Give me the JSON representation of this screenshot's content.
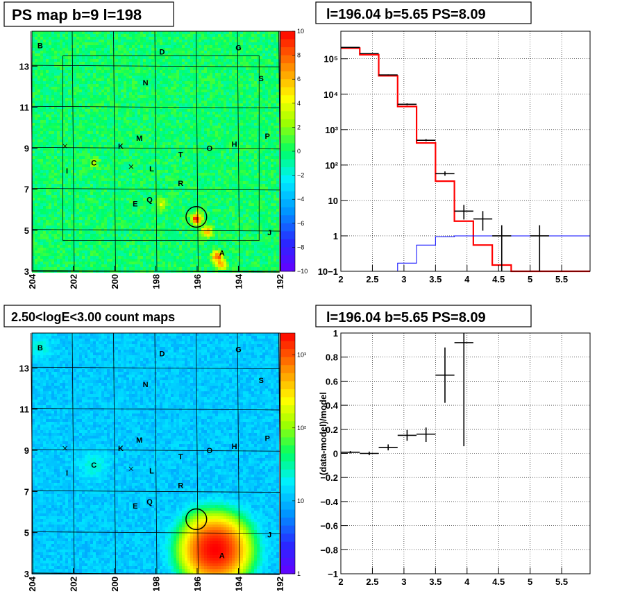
{
  "chart_data": [
    {
      "type": "heatmap",
      "title": "PS map b=9 l=198",
      "x_ticks": [
        "204",
        "202",
        "200",
        "198",
        "196",
        "194",
        "192"
      ],
      "y_ticks": [
        "3",
        "5",
        "7",
        "9",
        "11",
        "13"
      ],
      "xlim": [
        204,
        192
      ],
      "ylim": [
        3,
        14.7
      ],
      "colorbar": {
        "scale": "linear",
        "range": [
          -10,
          10
        ],
        "ticks": [
          "10",
          "8",
          "6",
          "4",
          "2",
          "0",
          "−2",
          "−4",
          "−6",
          "−8",
          "−10"
        ]
      },
      "hotspots": [
        {
          "l": 196.0,
          "b": 5.6,
          "value": 10
        },
        {
          "l": 195.5,
          "b": 5.0,
          "value": 7
        },
        {
          "l": 195.0,
          "b": 3.8,
          "value": 8
        },
        {
          "l": 194.8,
          "b": 3.4,
          "value": 6
        },
        {
          "l": 197.7,
          "b": 6.3,
          "value": 4
        },
        {
          "l": 201.0,
          "b": 8.3,
          "value": 2.5
        }
      ],
      "markers": [
        {
          "label": "B",
          "l": 203.6,
          "b": 14.0
        },
        {
          "label": "D",
          "l": 197.7,
          "b": 13.7
        },
        {
          "label": "G",
          "l": 194.0,
          "b": 13.9
        },
        {
          "label": "N",
          "l": 198.5,
          "b": 12.2
        },
        {
          "label": "S",
          "l": 192.9,
          "b": 12.4
        },
        {
          "label": "M",
          "l": 198.8,
          "b": 9.5
        },
        {
          "label": "K",
          "l": 199.7,
          "b": 9.1
        },
        {
          "label": "P",
          "l": 192.6,
          "b": 9.6
        },
        {
          "label": "H",
          "l": 194.2,
          "b": 9.2
        },
        {
          "label": "O",
          "l": 195.4,
          "b": 9.0
        },
        {
          "label": "T",
          "l": 196.8,
          "b": 8.7
        },
        {
          "label": "C",
          "l": 201.0,
          "b": 8.3
        },
        {
          "label": "I",
          "l": 202.3,
          "b": 7.9
        },
        {
          "label": "L",
          "l": 198.2,
          "b": 8.0
        },
        {
          "label": "R",
          "l": 196.8,
          "b": 7.3
        },
        {
          "label": "E",
          "l": 199.0,
          "b": 6.3
        },
        {
          "label": "Q",
          "l": 198.3,
          "b": 6.5
        },
        {
          "label": "J",
          "l": 192.5,
          "b": 4.9
        },
        {
          "label": "A",
          "l": 194.8,
          "b": 3.9
        }
      ],
      "cross_marks": [
        {
          "l": 202.4,
          "b": 9.1
        },
        {
          "l": 199.2,
          "b": 8.1
        }
      ],
      "circle": {
        "l": 196.04,
        "b": 5.65,
        "r": 0.5
      },
      "roi_box": {
        "l_min": 193.0,
        "l_max": 202.5,
        "b_min": 4.5,
        "b_max": 13.5
      }
    },
    {
      "type": "line",
      "title": "l=196.04 b=5.65 PS=8.09",
      "xlabel": "",
      "ylabel": "",
      "x_ticks": [
        "2",
        "2.5",
        "3",
        "3.5",
        "4",
        "4.5",
        "5",
        "5.5"
      ],
      "y_ticks": [
        "10−1",
        "1",
        "10",
        "10²",
        "10³",
        "10⁴",
        "10⁵"
      ],
      "xlim": [
        2.0,
        5.95
      ],
      "ylim": [
        0.1,
        600000
      ],
      "y_scale": "log",
      "grid": true,
      "bin_edges": [
        2.0,
        2.3,
        2.6,
        2.9,
        3.2,
        3.5,
        3.8,
        4.1,
        4.4,
        4.7,
        5.0,
        5.3,
        5.6,
        5.95
      ],
      "series": [
        {
          "values": [
            200000,
            130000,
            33000,
            4500,
            420,
            35,
            2.6,
            0.55,
            0.15,
            0.1,
            0.1,
            0.1,
            0.1
          ]
        },
        {
          "values": [
            0.1,
            0.1,
            0.1,
            0.17,
            0.55,
            0.95,
            1.0,
            1.0,
            1.0,
            1.0,
            1.0,
            1.0,
            1.0
          ]
        }
      ],
      "data_points": [
        {
          "x": 2.15,
          "y": 210000,
          "dx": 0.15,
          "ylo": 205000,
          "yhi": 215000
        },
        {
          "x": 2.45,
          "y": 140000,
          "dx": 0.15,
          "ylo": 137000,
          "yhi": 143000
        },
        {
          "x": 2.75,
          "y": 35000,
          "dx": 0.15,
          "ylo": 34000,
          "yhi": 36000
        },
        {
          "x": 3.05,
          "y": 5200,
          "dx": 0.15,
          "ylo": 4900,
          "yhi": 5500
        },
        {
          "x": 3.35,
          "y": 500,
          "dx": 0.15,
          "ylo": 470,
          "yhi": 540
        },
        {
          "x": 3.65,
          "y": 57,
          "dx": 0.15,
          "ylo": 50,
          "yhi": 66
        },
        {
          "x": 3.95,
          "y": 5,
          "dx": 0.15,
          "ylo": 2.9,
          "yhi": 7.5
        },
        {
          "x": 4.25,
          "y": 3,
          "dx": 0.15,
          "ylo": 1.4,
          "yhi": 5
        },
        {
          "x": 4.55,
          "y": 1,
          "dx": 0.15,
          "ylo": 0.1,
          "yhi": 2
        },
        {
          "x": 5.15,
          "y": 1,
          "dx": 0.15,
          "ylo": 0.1,
          "yhi": 2
        }
      ]
    },
    {
      "type": "heatmap",
      "title": "2.50<logE<3.00 count maps",
      "x_ticks": [
        "204",
        "202",
        "200",
        "198",
        "196",
        "194",
        "192"
      ],
      "y_ticks": [
        "3",
        "5",
        "7",
        "9",
        "11",
        "13"
      ],
      "xlim": [
        204,
        192
      ],
      "ylim": [
        3,
        14.7
      ],
      "colorbar": {
        "scale": "log",
        "range": [
          1,
          2000
        ],
        "ticks": [
          "10³",
          "10²",
          "10",
          "1"
        ]
      },
      "sources": [
        {
          "l": 195.1,
          "b": 4.2,
          "peak": 2000,
          "width": 1.2
        },
        {
          "l": 196.0,
          "b": 5.6,
          "peak": 25,
          "width": 0.6
        },
        {
          "l": 201.0,
          "b": 8.3,
          "peak": 12,
          "width": 0.7
        },
        {
          "l": 203.6,
          "b": 14.0,
          "peak": 10,
          "width": 0.6
        }
      ],
      "background_counts": 12,
      "markers": [
        {
          "label": "B",
          "l": 203.6,
          "b": 14.0
        },
        {
          "label": "D",
          "l": 197.7,
          "b": 13.7
        },
        {
          "label": "G",
          "l": 194.0,
          "b": 13.9
        },
        {
          "label": "N",
          "l": 198.5,
          "b": 12.2
        },
        {
          "label": "S",
          "l": 192.9,
          "b": 12.4
        },
        {
          "label": "M",
          "l": 198.8,
          "b": 9.5
        },
        {
          "label": "K",
          "l": 199.7,
          "b": 9.1
        },
        {
          "label": "P",
          "l": 192.6,
          "b": 9.6
        },
        {
          "label": "H",
          "l": 194.2,
          "b": 9.2
        },
        {
          "label": "O",
          "l": 195.4,
          "b": 9.0
        },
        {
          "label": "T",
          "l": 196.8,
          "b": 8.7
        },
        {
          "label": "C",
          "l": 201.0,
          "b": 8.3
        },
        {
          "label": "I",
          "l": 202.3,
          "b": 7.9
        },
        {
          "label": "L",
          "l": 198.2,
          "b": 8.0
        },
        {
          "label": "R",
          "l": 196.8,
          "b": 7.3
        },
        {
          "label": "E",
          "l": 199.0,
          "b": 6.3
        },
        {
          "label": "Q",
          "l": 198.3,
          "b": 6.5
        },
        {
          "label": "J",
          "l": 192.5,
          "b": 4.9
        },
        {
          "label": "A",
          "l": 194.8,
          "b": 3.9
        }
      ],
      "cross_marks": [
        {
          "l": 202.4,
          "b": 9.1
        },
        {
          "l": 199.2,
          "b": 8.1
        }
      ],
      "circle": {
        "l": 196.04,
        "b": 5.65,
        "r": 0.5
      }
    },
    {
      "type": "scatter",
      "title": "l=196.04 b=5.65 PS=8.09",
      "xlabel": "",
      "ylabel": "(data-model)/model",
      "x_ticks": [
        "2",
        "2.5",
        "3",
        "3.5",
        "4",
        "4.5",
        "5",
        "5.5"
      ],
      "y_ticks": [
        "1",
        "0.8",
        "0.6",
        "0.4",
        "0.2",
        "0",
        "−0.2",
        "−0.4",
        "−0.6",
        "−0.8",
        "−1"
      ],
      "xlim": [
        2.0,
        5.95
      ],
      "ylim": [
        -1,
        1
      ],
      "grid": true,
      "data_points": [
        {
          "x": 2.15,
          "y": 0.01,
          "dx": 0.15,
          "ylo": 0.0,
          "yhi": 0.02
        },
        {
          "x": 2.45,
          "y": 0.0,
          "dx": 0.15,
          "ylo": -0.015,
          "yhi": 0.015
        },
        {
          "x": 2.75,
          "y": 0.05,
          "dx": 0.15,
          "ylo": 0.025,
          "yhi": 0.075
        },
        {
          "x": 3.05,
          "y": 0.15,
          "dx": 0.15,
          "ylo": 0.105,
          "yhi": 0.195
        },
        {
          "x": 3.35,
          "y": 0.16,
          "dx": 0.15,
          "ylo": 0.095,
          "yhi": 0.215
        },
        {
          "x": 3.65,
          "y": 0.65,
          "dx": 0.15,
          "ylo": 0.42,
          "yhi": 0.88
        },
        {
          "x": 3.95,
          "y": 0.92,
          "dx": 0.15,
          "ylo": 0.06,
          "yhi": 1.0
        }
      ]
    }
  ]
}
